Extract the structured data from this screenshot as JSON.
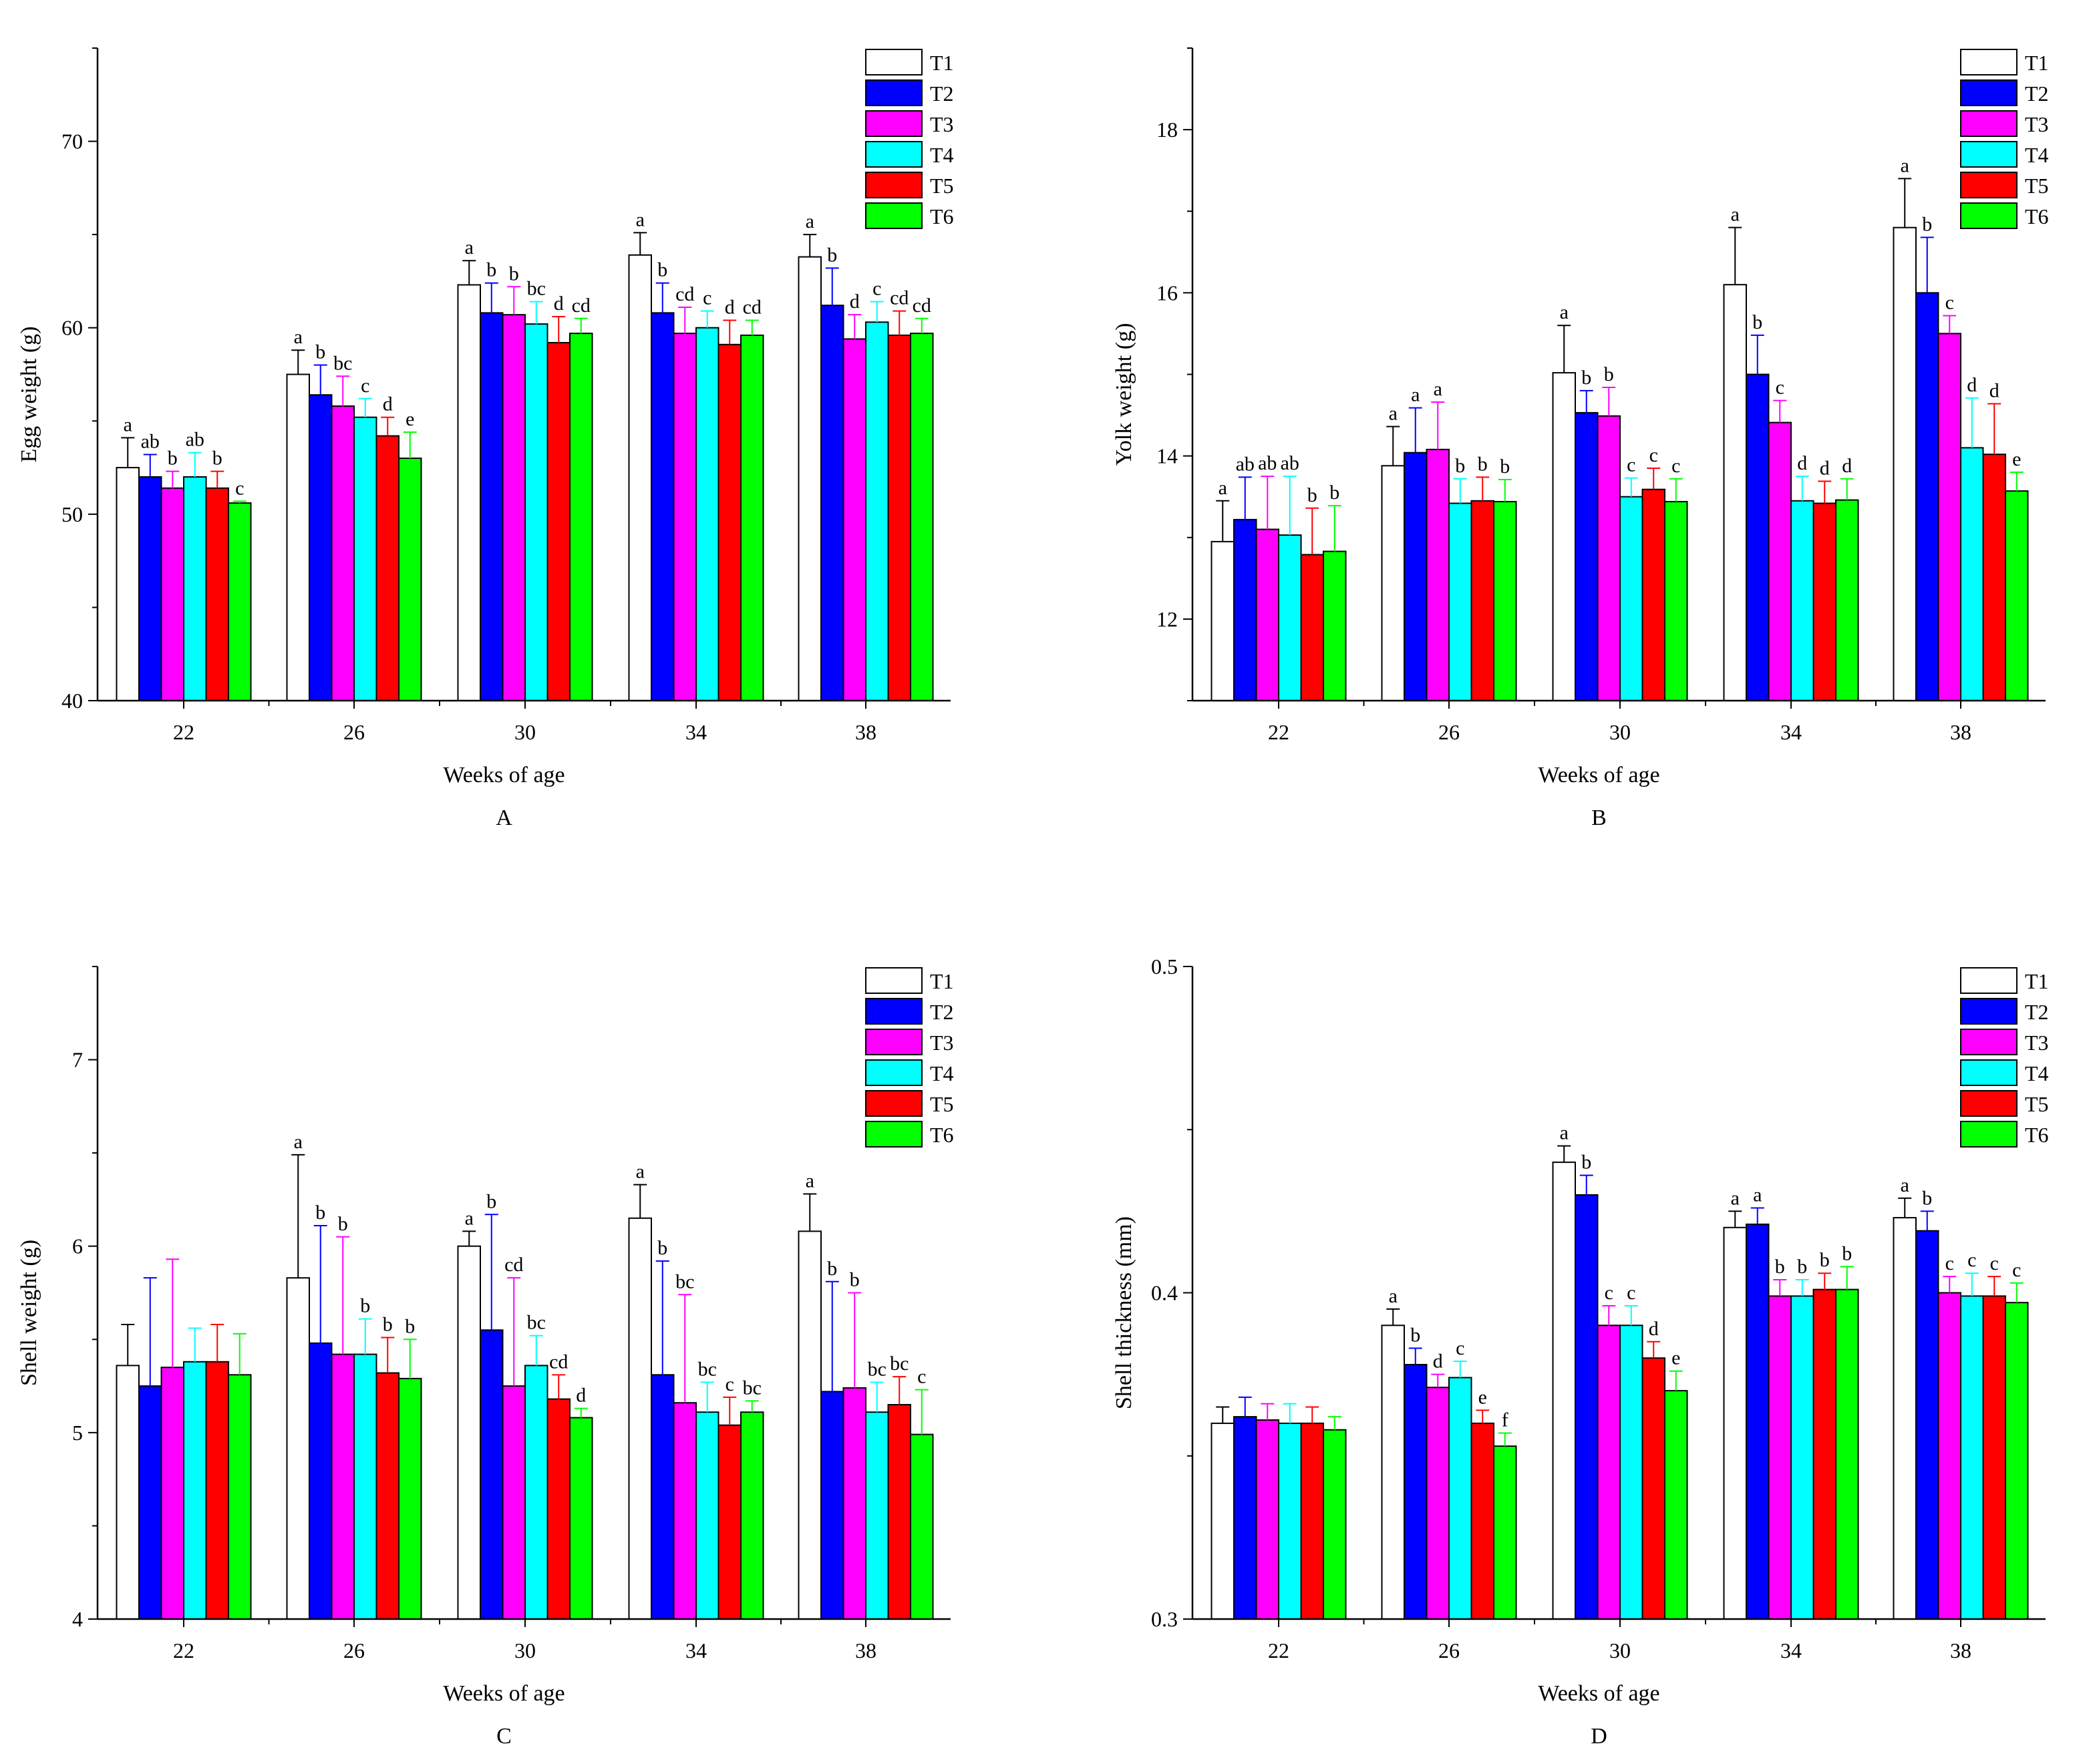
{
  "colors": {
    "T1": "#ffffff",
    "T2": "#0000ff",
    "T3": "#ff00ff",
    "T4": "#00ffff",
    "T5": "#ff0000",
    "T6": "#00ff00",
    "axis": "#000000"
  },
  "chart_data": [
    {
      "type": "bar",
      "panel": "A",
      "xlabel": "Weeks of age",
      "ylabel": "Egg weight (g)",
      "ylim": [
        40,
        75
      ],
      "yticks": [
        40,
        50,
        60,
        70
      ],
      "categories": [
        "22",
        "26",
        "30",
        "34",
        "38"
      ],
      "legend": [
        "T1",
        "T2",
        "T3",
        "T4",
        "T5",
        "T6"
      ],
      "series": [
        {
          "name": "T1",
          "values": [
            52.5,
            57.5,
            62.3,
            63.9,
            63.8
          ],
          "errors": [
            1.6,
            1.3,
            1.3,
            1.2,
            1.2
          ],
          "labels": [
            "a",
            "a",
            "a",
            "a",
            "a"
          ]
        },
        {
          "name": "T2",
          "values": [
            52.0,
            56.4,
            60.8,
            60.8,
            61.2
          ],
          "errors": [
            1.2,
            1.6,
            1.6,
            1.6,
            2.0
          ],
          "labels": [
            "ab",
            "b",
            "b",
            "b",
            "b"
          ]
        },
        {
          "name": "T3",
          "values": [
            51.4,
            55.8,
            60.7,
            59.7,
            59.4
          ],
          "errors": [
            0.9,
            1.6,
            1.5,
            1.4,
            1.3
          ],
          "labels": [
            "b",
            "bc",
            "b",
            "cd",
            "d"
          ]
        },
        {
          "name": "T4",
          "values": [
            52.0,
            55.2,
            60.2,
            60.0,
            60.3
          ],
          "errors": [
            1.3,
            1.0,
            1.2,
            0.9,
            1.1
          ],
          "labels": [
            "ab",
            "c",
            "bc",
            "c",
            "c"
          ]
        },
        {
          "name": "T5",
          "values": [
            51.4,
            54.2,
            59.2,
            59.1,
            59.6
          ],
          "errors": [
            0.9,
            1.0,
            1.4,
            1.3,
            1.3
          ],
          "labels": [
            "b",
            "d",
            "d",
            "d",
            "cd"
          ]
        },
        {
          "name": "T6",
          "values": [
            50.6,
            53.0,
            59.7,
            59.6,
            59.7
          ],
          "errors": [
            0.1,
            1.4,
            0.8,
            0.8,
            0.8
          ],
          "labels": [
            "c",
            "e",
            "cd",
            "cd",
            "cd"
          ]
        }
      ]
    },
    {
      "type": "bar",
      "panel": "B",
      "xlabel": "Weeks of age",
      "ylabel": "Yolk weight (g)",
      "ylim": [
        11,
        19
      ],
      "yticks": [
        12,
        14,
        16,
        18
      ],
      "categories": [
        "22",
        "26",
        "30",
        "34",
        "38"
      ],
      "legend": [
        "T1",
        "T2",
        "T3",
        "T4",
        "T5",
        "T6"
      ],
      "series": [
        {
          "name": "T1",
          "values": [
            12.95,
            13.88,
            15.02,
            16.1,
            16.8
          ],
          "errors": [
            0.5,
            0.48,
            0.58,
            0.7,
            0.6
          ],
          "labels": [
            "a",
            "a",
            "a",
            "a",
            "a"
          ]
        },
        {
          "name": "T2",
          "values": [
            13.22,
            14.04,
            14.53,
            15.0,
            16.0
          ],
          "errors": [
            0.52,
            0.55,
            0.27,
            0.48,
            0.68
          ],
          "labels": [
            "ab",
            "a",
            "b",
            "b",
            "b"
          ]
        },
        {
          "name": "T3",
          "values": [
            13.1,
            14.08,
            14.49,
            14.41,
            15.5
          ],
          "errors": [
            0.65,
            0.58,
            0.35,
            0.27,
            0.22
          ],
          "labels": [
            "ab",
            "a",
            "b",
            "c",
            "c"
          ]
        },
        {
          "name": "T4",
          "values": [
            13.03,
            13.42,
            13.5,
            13.45,
            14.1
          ],
          "errors": [
            0.72,
            0.3,
            0.23,
            0.3,
            0.61
          ],
          "labels": [
            "ab",
            "b",
            "c",
            "d",
            "d"
          ]
        },
        {
          "name": "T5",
          "values": [
            12.79,
            13.45,
            13.59,
            13.42,
            14.02
          ],
          "errors": [
            0.57,
            0.29,
            0.26,
            0.27,
            0.62
          ],
          "labels": [
            "b",
            "b",
            "c",
            "d",
            "d"
          ]
        },
        {
          "name": "T6",
          "values": [
            12.83,
            13.44,
            13.44,
            13.46,
            13.57
          ],
          "errors": [
            0.56,
            0.27,
            0.28,
            0.26,
            0.23
          ],
          "labels": [
            "b",
            "b",
            "c",
            "d",
            "e"
          ]
        }
      ]
    },
    {
      "type": "bar",
      "panel": "C",
      "xlabel": "Weeks of age",
      "ylabel": "Shell weight (g)",
      "ylim": [
        4,
        7.5
      ],
      "yticks": [
        4,
        5,
        6,
        7
      ],
      "categories": [
        "22",
        "26",
        "30",
        "34",
        "38"
      ],
      "legend": [
        "T1",
        "T2",
        "T3",
        "T4",
        "T5",
        "T6"
      ],
      "series": [
        {
          "name": "T1",
          "values": [
            5.36,
            5.83,
            6.0,
            6.15,
            6.08
          ],
          "errors": [
            0.22,
            0.66,
            0.08,
            0.18,
            0.2
          ],
          "labels": [
            "",
            "a",
            "a",
            "a",
            "a"
          ]
        },
        {
          "name": "T2",
          "values": [
            5.25,
            5.48,
            5.55,
            5.31,
            5.22
          ],
          "errors": [
            0.58,
            0.63,
            0.62,
            0.61,
            0.59
          ],
          "labels": [
            "",
            "b",
            "b",
            "b",
            "b"
          ]
        },
        {
          "name": "T3",
          "values": [
            5.35,
            5.42,
            5.25,
            5.16,
            5.24
          ],
          "errors": [
            0.58,
            0.63,
            0.58,
            0.58,
            0.51
          ],
          "labels": [
            "",
            "b",
            "cd",
            "bc",
            "b"
          ]
        },
        {
          "name": "T4",
          "values": [
            5.38,
            5.42,
            5.36,
            5.11,
            5.11
          ],
          "errors": [
            0.18,
            0.19,
            0.16,
            0.16,
            0.16
          ],
          "labels": [
            "",
            "b",
            "bc",
            "bc",
            "bc"
          ]
        },
        {
          "name": "T5",
          "values": [
            5.38,
            5.32,
            5.18,
            5.04,
            5.15
          ],
          "errors": [
            0.2,
            0.19,
            0.13,
            0.15,
            0.15
          ],
          "labels": [
            "",
            "b",
            "cd",
            "c",
            "bc"
          ]
        },
        {
          "name": "T6",
          "values": [
            5.31,
            5.29,
            5.08,
            5.11,
            4.99
          ],
          "errors": [
            0.22,
            0.21,
            0.05,
            0.06,
            0.24
          ],
          "labels": [
            "",
            "b",
            "d",
            "bc",
            "c"
          ]
        }
      ]
    },
    {
      "type": "bar",
      "panel": "D",
      "xlabel": "Weeks of age",
      "ylabel": "Shell thickness (mm)",
      "ylim": [
        0.3,
        0.5
      ],
      "yticks": [
        0.3,
        0.4,
        0.5
      ],
      "categories": [
        "22",
        "26",
        "30",
        "34",
        "38"
      ],
      "legend": [
        "T1",
        "T2",
        "T3",
        "T4",
        "T5",
        "T6"
      ],
      "series": [
        {
          "name": "T1",
          "values": [
            0.36,
            0.39,
            0.44,
            0.42,
            0.423
          ],
          "errors": [
            0.005,
            0.005,
            0.005,
            0.005,
            0.006
          ],
          "labels": [
            "",
            "a",
            "a",
            "a",
            "a"
          ]
        },
        {
          "name": "T2",
          "values": [
            0.362,
            0.378,
            0.43,
            0.421,
            0.419
          ],
          "errors": [
            0.006,
            0.005,
            0.006,
            0.005,
            0.006
          ],
          "labels": [
            "",
            "b",
            "b",
            "a",
            "b"
          ]
        },
        {
          "name": "T3",
          "values": [
            0.361,
            0.371,
            0.39,
            0.399,
            0.4
          ],
          "errors": [
            0.005,
            0.004,
            0.006,
            0.005,
            0.005
          ],
          "labels": [
            "",
            "d",
            "c",
            "b",
            "c"
          ]
        },
        {
          "name": "T4",
          "values": [
            0.36,
            0.374,
            0.39,
            0.399,
            0.399
          ],
          "errors": [
            0.006,
            0.005,
            0.006,
            0.005,
            0.007
          ],
          "labels": [
            "",
            "c",
            "c",
            "b",
            "c"
          ]
        },
        {
          "name": "T5",
          "values": [
            0.36,
            0.36,
            0.38,
            0.401,
            0.399
          ],
          "errors": [
            0.005,
            0.004,
            0.005,
            0.005,
            0.006
          ],
          "labels": [
            "",
            "e",
            "d",
            "b",
            "c"
          ]
        },
        {
          "name": "T6",
          "values": [
            0.358,
            0.353,
            0.37,
            0.401,
            0.397
          ],
          "errors": [
            0.004,
            0.004,
            0.006,
            0.007,
            0.006
          ],
          "labels": [
            "",
            "f",
            "e",
            "b",
            "c"
          ]
        }
      ]
    }
  ]
}
